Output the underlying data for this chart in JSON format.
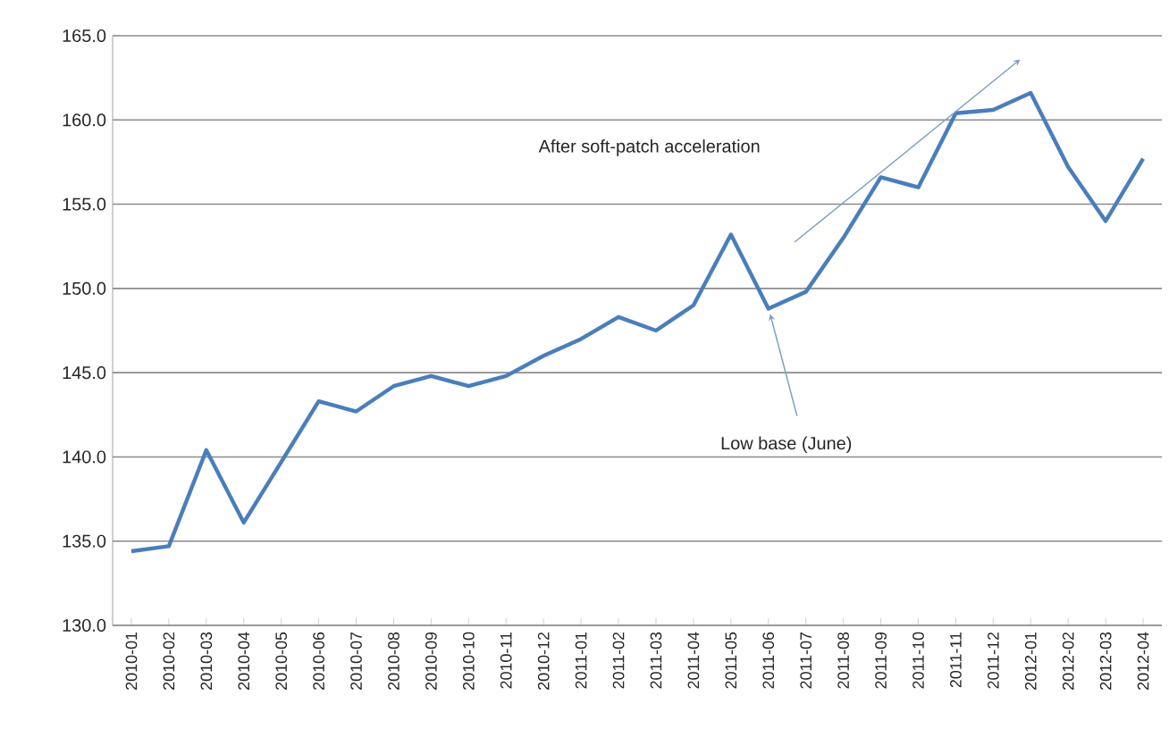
{
  "chart_data": {
    "type": "line",
    "categories": [
      "2010-01",
      "2010-02",
      "2010-03",
      "2010-04",
      "2010-05",
      "2010-06",
      "2010-07",
      "2010-08",
      "2010-09",
      "2010-10",
      "2010-11",
      "2010-12",
      "2011-01",
      "2011-02",
      "2011-03",
      "2011-04",
      "2011-05",
      "2011-06",
      "2011-07",
      "2011-08",
      "2011-09",
      "2011-10",
      "2011-11",
      "2011-12",
      "2012-01",
      "2012-02",
      "2012-03",
      "2012-04"
    ],
    "series": [
      {
        "color": "#4a7ebb",
        "values": [
          134.4,
          134.7,
          140.4,
          136.1,
          139.7,
          143.3,
          142.7,
          144.2,
          144.8,
          144.2,
          144.8,
          146.0,
          147.0,
          148.3,
          147.5,
          149.0,
          153.2,
          148.8,
          149.8,
          153.0,
          156.6,
          156.0,
          160.4,
          160.6,
          161.6,
          157.2,
          154.0,
          157.7
        ]
      }
    ],
    "ylim": [
      130,
      165
    ],
    "yticks": [
      {
        "value": 130,
        "label": "130.0"
      },
      {
        "value": 135,
        "label": "135.0"
      },
      {
        "value": 140,
        "label": "140.0"
      },
      {
        "value": 145,
        "label": "145.0"
      },
      {
        "value": 150,
        "label": "150.0"
      },
      {
        "value": 155,
        "label": "155.0"
      },
      {
        "value": 160,
        "label": "160.0"
      },
      {
        "value": 165,
        "label": "165.0"
      }
    ],
    "grid": "y",
    "legend": false,
    "marker": "none",
    "line_style": "solid",
    "annotations": [
      "After soft-patch acceleration",
      {
        "text": "Low base (June)",
        "x": "2011-06",
        "y": 148.8
      }
    ]
  }
}
